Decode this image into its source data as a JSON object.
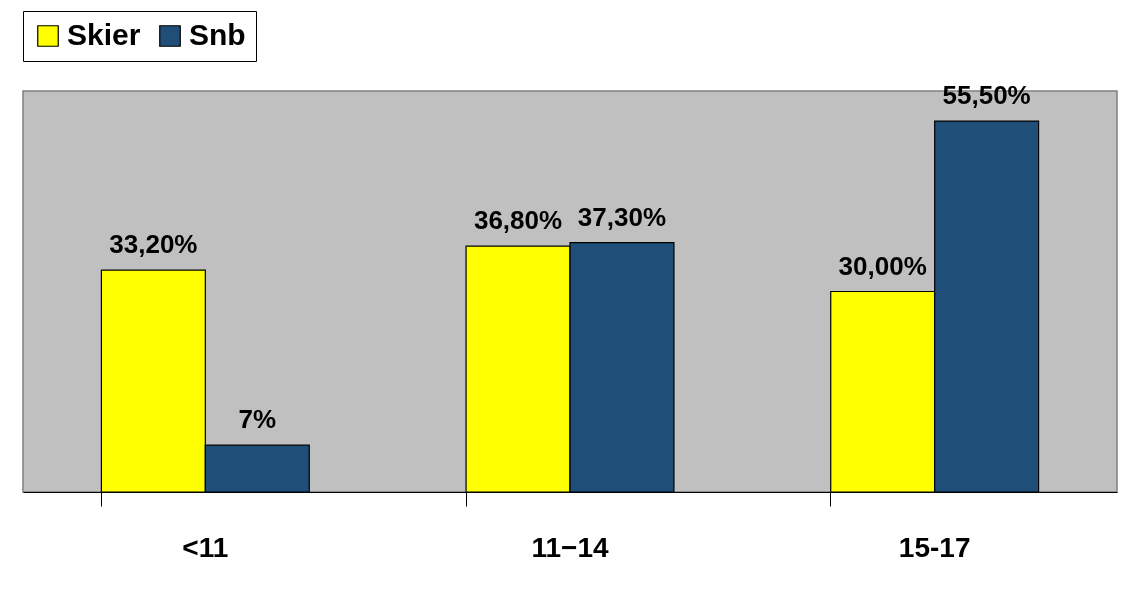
{
  "chart_data": {
    "type": "bar",
    "categories": [
      "<11",
      "11−14",
      "15-17"
    ],
    "series": [
      {
        "name": "Skier",
        "color": "#ffff00",
        "values": [
          33.2,
          36.8,
          30.0
        ],
        "value_labels": [
          "33,20%",
          "36,80%",
          "30,00%"
        ]
      },
      {
        "name": "Snb",
        "color": "#1f4e79",
        "values": [
          7,
          37.3,
          55.5
        ],
        "value_labels": [
          "7%",
          "37,30%",
          "55,50%"
        ]
      }
    ],
    "ylim": [
      0,
      60
    ],
    "legend": "top",
    "grid": false
  }
}
